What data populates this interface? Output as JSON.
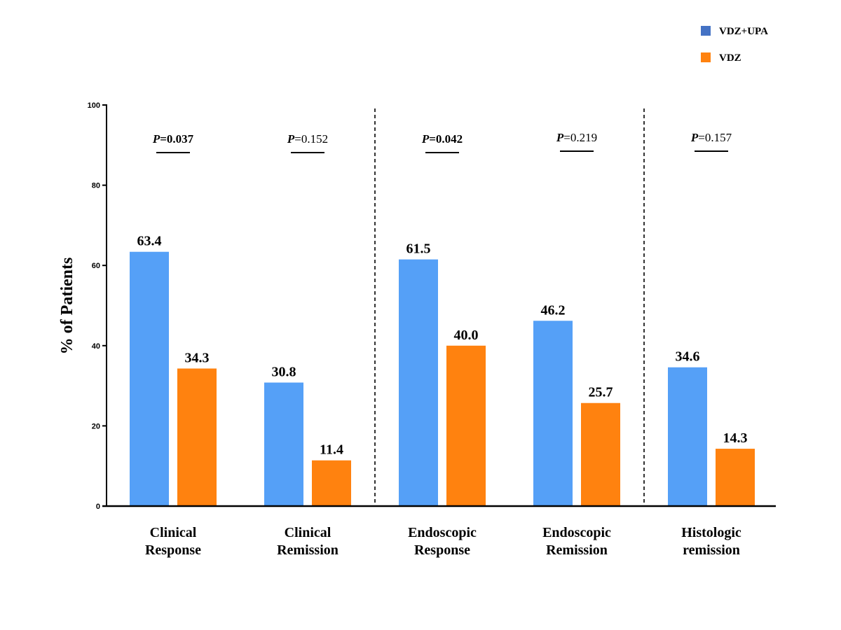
{
  "chart_data": {
    "type": "bar",
    "ylabel": "% of Patients",
    "xlabel": "",
    "ylim": [
      0,
      100
    ],
    "yticks": [
      0,
      20,
      40,
      60,
      80,
      100
    ],
    "grid": false,
    "legend_position": "top-right",
    "categories": [
      {
        "line1": "Clinical",
        "line2": "Response"
      },
      {
        "line1": "Clinical",
        "line2": "Remission"
      },
      {
        "line1": "Endoscopic",
        "line2": "Response"
      },
      {
        "line1": "Endoscopic",
        "line2": "Remission"
      },
      {
        "line1": "Histologic",
        "line2": "remission"
      }
    ],
    "series": [
      {
        "name": "VDZ+UPA",
        "color": "#55a0f7",
        "legend_color": "#4472c4",
        "values": [
          63.4,
          30.8,
          61.5,
          46.2,
          34.6
        ],
        "labels": [
          "63.4",
          "30.8",
          "61.5",
          "46.2",
          "34.6"
        ]
      },
      {
        "name": "VDZ",
        "color": "#ff820f",
        "legend_color": "#ff820f",
        "values": [
          34.3,
          11.4,
          40.0,
          25.7,
          14.3
        ],
        "labels": [
          "34.3",
          "11.4",
          "40.0",
          "25.7",
          "14.3"
        ]
      }
    ],
    "p_values": [
      {
        "prefix": "P",
        "text": "=0.037",
        "significant": true
      },
      {
        "prefix": "P",
        "text": "=0.152",
        "significant": false
      },
      {
        "prefix": "P",
        "text": "=0.042",
        "significant": true
      },
      {
        "prefix": "P",
        "text": "=0.219",
        "significant": false
      },
      {
        "prefix": "P",
        "text": "=0.157",
        "significant": false
      }
    ],
    "separators_after_category": [
      1,
      3
    ]
  }
}
